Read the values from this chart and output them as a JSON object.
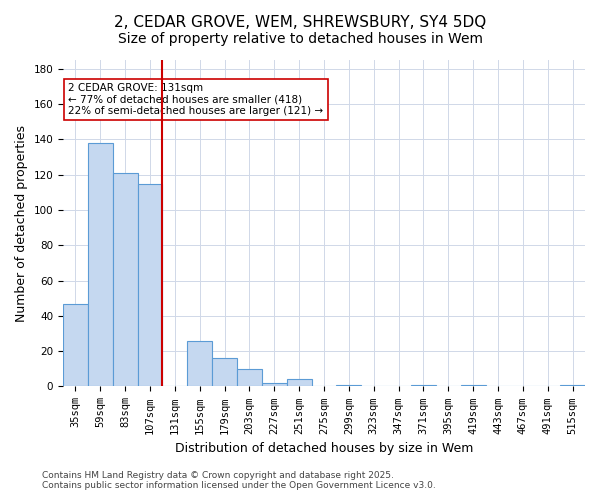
{
  "title": "2, CEDAR GROVE, WEM, SHREWSBURY, SY4 5DQ",
  "subtitle": "Size of property relative to detached houses in Wem",
  "xlabel": "Distribution of detached houses by size in Wem",
  "ylabel": "Number of detached properties",
  "categories": [
    "35sqm",
    "59sqm",
    "83sqm",
    "107sqm",
    "131sqm",
    "155sqm",
    "179sqm",
    "203sqm",
    "227sqm",
    "251sqm",
    "275sqm",
    "299sqm",
    "323sqm",
    "347sqm",
    "371sqm",
    "395sqm",
    "419sqm",
    "443sqm",
    "467sqm",
    "491sqm",
    "515sqm"
  ],
  "values": [
    47,
    138,
    121,
    115,
    0,
    26,
    16,
    10,
    2,
    4,
    0,
    1,
    0,
    0,
    1,
    0,
    1,
    0,
    0,
    0,
    1
  ],
  "bar_color": "#c5d8f0",
  "bar_edge_color": "#5b9bd5",
  "vline_x_index": 4,
  "vline_color": "#cc0000",
  "annotation_text": "2 CEDAR GROVE: 131sqm\n← 77% of detached houses are smaller (418)\n22% of semi-detached houses are larger (121) →",
  "annotation_box_color": "#ffffff",
  "annotation_box_edge_color": "#cc0000",
  "background_color": "#ffffff",
  "grid_color": "#d0d8e8",
  "footer_text": "Contains HM Land Registry data © Crown copyright and database right 2025.\nContains public sector information licensed under the Open Government Licence v3.0.",
  "ylim": [
    0,
    185
  ],
  "yticks": [
    0,
    20,
    40,
    60,
    80,
    100,
    120,
    140,
    160,
    180
  ],
  "title_fontsize": 11,
  "subtitle_fontsize": 10,
  "axis_label_fontsize": 9,
  "tick_fontsize": 7.5,
  "footer_fontsize": 6.5
}
